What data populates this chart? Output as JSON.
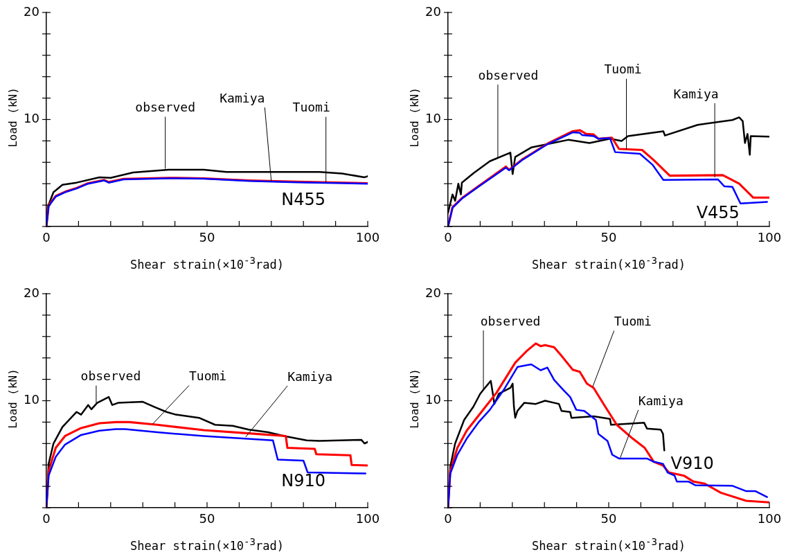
{
  "chart_data": [
    {
      "type": "line",
      "title": "N455",
      "xlabel": "Shear strain(×10$^{-3}$rad)",
      "ylabel": "Load (kN)",
      "xlim": [
        0,
        100
      ],
      "ylim": [
        0,
        20
      ],
      "xticks": [
        0,
        {
          "value": 10,
          "label": null
        },
        {
          "value": 20,
          "label": null
        },
        {
          "value": 30,
          "label": null
        },
        {
          "value": 40,
          "label": null
        },
        50,
        {
          "value": 60,
          "label": null
        },
        {
          "value": 70,
          "label": null
        },
        {
          "value": 80,
          "label": null
        },
        {
          "value": 90,
          "label": null
        },
        100
      ],
      "yticks": [
        {
          "value": 0,
          "label": null
        },
        {
          "value": 2,
          "label": null
        },
        {
          "value": 4,
          "label": null
        },
        {
          "value": 6,
          "label": null
        },
        {
          "value": 8,
          "label": null
        },
        {
          "value": 10,
          "label": "10"
        },
        {
          "value": 12,
          "label": null
        },
        {
          "value": 14,
          "label": null
        },
        {
          "value": 16,
          "label": null
        },
        {
          "value": 18,
          "label": null
        },
        {
          "value": 20,
          "label": "20"
        }
      ],
      "series": [
        {
          "color": "#000000",
          "x": [
            0,
            0.5,
            2.2,
            5,
            9.4,
            16.5,
            20,
            27,
            38,
            49,
            56,
            70.5,
            85,
            92,
            99,
            100
          ],
          "values": [
            0,
            1.9,
            3.2,
            3.9,
            4.1,
            4.6,
            4.55,
            5.05,
            5.3,
            5.3,
            5.1,
            5.1,
            5.1,
            4.95,
            4.6,
            4.7
          ]
        },
        {
          "color": "#ff0000",
          "x": [
            0,
            0.7,
            2.9,
            5.8,
            9.4,
            13,
            18,
            19.4,
            24,
            38,
            49,
            63,
            78,
            100
          ],
          "values": [
            0,
            2.0,
            2.85,
            3.25,
            3.6,
            4.05,
            4.35,
            4.15,
            4.45,
            4.55,
            4.5,
            4.3,
            4.18,
            4.05
          ]
        },
        {
          "color": "#0000ff",
          "x": [
            0,
            0.7,
            2.9,
            5.8,
            9.4,
            13,
            18,
            19.4,
            24,
            38,
            49,
            63,
            78,
            100
          ],
          "values": [
            0,
            1.9,
            2.8,
            3.2,
            3.55,
            4.0,
            4.3,
            4.1,
            4.4,
            4.5,
            4.47,
            4.25,
            4.13,
            4.0
          ]
        }
      ],
      "annotations": [
        {
          "text": "observed",
          "x": 37,
          "y": 5.4
        },
        {
          "text": "Kamiya",
          "x": 70,
          "y": 4.2
        },
        {
          "text": "Tuomi",
          "x": 87,
          "y": 4.1
        }
      ]
    },
    {
      "type": "line",
      "title": "V455",
      "xlabel": "Shear strain(×10$^{-3}$rad)",
      "ylabel": "Load (kN)",
      "xlim": [
        0,
        100
      ],
      "ylim": [
        0,
        20
      ],
      "xticks": [
        0,
        {
          "value": 10,
          "label": null
        },
        {
          "value": 20,
          "label": null
        },
        {
          "value": 30,
          "label": null
        },
        {
          "value": 40,
          "label": null
        },
        50,
        {
          "value": 60,
          "label": null
        },
        {
          "value": 70,
          "label": null
        },
        {
          "value": 80,
          "label": null
        },
        {
          "value": 90,
          "label": null
        },
        100
      ],
      "yticks": [
        {
          "value": 0,
          "label": null
        },
        {
          "value": 2,
          "label": null
        },
        {
          "value": 4,
          "label": null
        },
        {
          "value": 6,
          "label": null
        },
        {
          "value": 8,
          "label": null
        },
        {
          "value": 10,
          "label": "10"
        },
        {
          "value": 12,
          "label": null
        },
        {
          "value": 14,
          "label": null
        },
        {
          "value": 16,
          "label": null
        },
        {
          "value": 18,
          "label": null
        },
        {
          "value": 20,
          "label": "20"
        }
      ],
      "series": [
        {
          "color": "#000000",
          "x": [
            0,
            1.4,
            2.2,
            3.2,
            4,
            4.3,
            8,
            13,
            19.4,
            20.1,
            20.9,
            26,
            31,
            37.4,
            44,
            50.4,
            54,
            56,
            67,
            67.5,
            77.7,
            88.5,
            90.6,
            91.7,
            92.4,
            93.2,
            93.9,
            94.2,
            100
          ],
          "values": [
            1.3,
            3.0,
            2.4,
            4.0,
            3.0,
            4.1,
            5.0,
            6.1,
            6.9,
            4.9,
            6.5,
            7.4,
            7.7,
            8.1,
            7.8,
            8.2,
            8.0,
            8.45,
            8.9,
            8.5,
            9.5,
            9.95,
            10.2,
            9.85,
            7.8,
            8.65,
            6.7,
            8.45,
            8.4
          ]
        },
        {
          "color": "#ff0000",
          "x": [
            0,
            1.4,
            4.3,
            9.4,
            18,
            19,
            23,
            31,
            38.8,
            41,
            43,
            45.3,
            46.8,
            51,
            53.2,
            60.4,
            64,
            69,
            85.5,
            90.6,
            95,
            100
          ],
          "values": [
            0,
            1.8,
            2.65,
            3.75,
            5.6,
            5.3,
            6.25,
            7.75,
            8.9,
            9.0,
            8.65,
            8.6,
            8.2,
            8.3,
            7.25,
            7.15,
            6.2,
            4.75,
            4.8,
            4.0,
            2.7,
            2.7
          ]
        },
        {
          "color": "#0000ff",
          "x": [
            0,
            1.4,
            4.3,
            9.4,
            18,
            19,
            23,
            31,
            38.8,
            41,
            41.7,
            45.3,
            46.8,
            50.4,
            52,
            59.7,
            63.7,
            67,
            84,
            86,
            88.5,
            91,
            99.3
          ],
          "values": [
            0,
            1.75,
            2.6,
            3.7,
            5.5,
            5.25,
            6.2,
            7.7,
            8.8,
            8.75,
            8.55,
            8.45,
            8.2,
            8.25,
            6.95,
            6.8,
            5.75,
            4.35,
            4.4,
            3.75,
            3.7,
            2.15,
            2.3
          ]
        }
      ],
      "annotations": [
        {
          "text": "observed",
          "x": 15.5,
          "y": 6.4
        },
        {
          "text": "Tuomi",
          "x": 55.5,
          "y": 7.2
        },
        {
          "text": "Kamiya",
          "x": 83,
          "y": 4.6
        }
      ]
    },
    {
      "type": "line",
      "title": "N910",
      "xlabel": "Shear strain(×10$^{-3}$rad)",
      "ylabel": "Load (kN)",
      "xlim": [
        0,
        100
      ],
      "ylim": [
        0,
        20
      ],
      "xticks": [
        0,
        {
          "value": 10,
          "label": null
        },
        {
          "value": 20,
          "label": null
        },
        {
          "value": 30,
          "label": null
        },
        {
          "value": 40,
          "label": null
        },
        50,
        {
          "value": 60,
          "label": null
        },
        {
          "value": 70,
          "label": null
        },
        {
          "value": 80,
          "label": null
        },
        {
          "value": 90,
          "label": null
        },
        100
      ],
      "yticks": [
        {
          "value": 0,
          "label": null
        },
        {
          "value": 2,
          "label": null
        },
        {
          "value": 4,
          "label": null
        },
        {
          "value": 6,
          "label": null
        },
        {
          "value": 8,
          "label": null
        },
        {
          "value": 10,
          "label": "10"
        },
        {
          "value": 12,
          "label": null
        },
        {
          "value": 14,
          "label": null
        },
        {
          "value": 16,
          "label": null
        },
        {
          "value": 18,
          "label": null
        },
        {
          "value": 20,
          "label": "20"
        }
      ],
      "series": [
        {
          "color": "#000000",
          "x": [
            0,
            0.7,
            2.2,
            5,
            9.4,
            10.8,
            13,
            14,
            15.8,
            19.4,
            20.5,
            22.3,
            30,
            33.8,
            37.4,
            40.3,
            47.5,
            52.5,
            58,
            63,
            69,
            74,
            81,
            85,
            98,
            99,
            100
          ],
          "values": [
            0,
            4.1,
            6.0,
            7.55,
            8.95,
            8.7,
            9.6,
            9.2,
            9.8,
            10.35,
            9.6,
            9.8,
            9.9,
            9.4,
            8.95,
            8.7,
            8.4,
            7.75,
            7.65,
            7.3,
            7.05,
            6.7,
            6.3,
            6.25,
            6.35,
            6.0,
            6.15
          ]
        },
        {
          "color": "#ff0000",
          "x": [
            0,
            0.7,
            2.9,
            5.8,
            10.8,
            16.5,
            21.6,
            25.9,
            34.5,
            49,
            63,
            74.5,
            75,
            83.5,
            84,
            94.6,
            95,
            100
          ],
          "values": [
            0,
            3.45,
            5.6,
            6.7,
            7.45,
            7.9,
            8.0,
            8.0,
            7.75,
            7.25,
            6.95,
            6.7,
            5.6,
            5.5,
            5.0,
            4.9,
            4.0,
            3.95
          ]
        },
        {
          "color": "#0000ff",
          "x": [
            0,
            0.7,
            2.9,
            5.8,
            10.8,
            16.5,
            21.6,
            24.5,
            34.5,
            49,
            70.5,
            72,
            80,
            81.3,
            99.3
          ],
          "values": [
            0,
            3.0,
            4.75,
            5.9,
            6.8,
            7.2,
            7.35,
            7.35,
            7.05,
            6.7,
            6.3,
            4.5,
            4.4,
            3.3,
            3.2
          ]
        }
      ],
      "annotations": [
        {
          "text": "observed",
          "x": 15.5,
          "y": 9.8
        },
        {
          "text": "Tuomi",
          "x": 33,
          "y": 7.8
        },
        {
          "text": "Kamiya",
          "x": 62,
          "y": 6.6
        }
      ]
    },
    {
      "type": "line",
      "title": "V910",
      "xlabel": "Shear strain(×10$^{-3}$rad)",
      "ylabel": "Load (kN)",
      "xlim": [
        0,
        100
      ],
      "ylim": [
        0,
        20
      ],
      "xticks": [
        0,
        {
          "value": 10,
          "label": null
        },
        {
          "value": 20,
          "label": null
        },
        {
          "value": 30,
          "label": null
        },
        {
          "value": 40,
          "label": null
        },
        50,
        {
          "value": 60,
          "label": null
        },
        {
          "value": 70,
          "label": null
        },
        {
          "value": 80,
          "label": null
        },
        {
          "value": 90,
          "label": null
        },
        100
      ],
      "yticks": [
        {
          "value": 0,
          "label": null
        },
        {
          "value": 2,
          "label": null
        },
        {
          "value": 4,
          "label": null
        },
        {
          "value": 6,
          "label": null
        },
        {
          "value": 8,
          "label": null
        },
        {
          "value": 10,
          "label": "10"
        },
        {
          "value": 12,
          "label": null
        },
        {
          "value": 14,
          "label": null
        },
        {
          "value": 16,
          "label": null
        },
        {
          "value": 18,
          "label": null
        },
        {
          "value": 20,
          "label": "20"
        }
      ],
      "series": [
        {
          "color": "#000000",
          "x": [
            0,
            0.7,
            2.2,
            5,
            7.9,
            10,
            11.2,
            13.3,
            14,
            14.4,
            15.8,
            19.4,
            20.1,
            20.5,
            20.9,
            21.6,
            23.7,
            27.3,
            30.2,
            34.5,
            35.3,
            38,
            38.4,
            45.3,
            50.4,
            50.7,
            56,
            61,
            61.9,
            66.2,
            66.9,
            67.3
          ],
          "values": [
            0,
            3.85,
            6.0,
            8.2,
            9.45,
            10.65,
            11.1,
            11.85,
            10.55,
            9.7,
            10.65,
            11.2,
            11.6,
            9.45,
            8.4,
            9.05,
            9.8,
            9.7,
            10.0,
            9.7,
            9.05,
            8.95,
            8.4,
            8.55,
            8.3,
            7.75,
            7.85,
            7.95,
            7.4,
            7.3,
            6.9,
            5.35
          ]
        },
        {
          "color": "#ff0000",
          "x": [
            0,
            0.7,
            2.9,
            5.8,
            10,
            15.1,
            20.9,
            24.5,
            27.3,
            28.8,
            30.2,
            33,
            35.3,
            38.8,
            41,
            43.2,
            45.3,
            48.9,
            52.5,
            57.5,
            61.2,
            64,
            66.9,
            68.7,
            73.4,
            76.3,
            79.9,
            84.9,
            92.8,
            100
          ],
          "values": [
            0,
            3.45,
            5.6,
            7.2,
            8.8,
            10.75,
            13.55,
            14.65,
            15.35,
            15.1,
            15.2,
            15.0,
            14.2,
            12.9,
            12.7,
            11.6,
            11.2,
            9.45,
            7.75,
            6.45,
            5.6,
            4.3,
            3.95,
            3.3,
            3.0,
            2.45,
            2.25,
            1.4,
            0.65,
            0.5
          ]
        },
        {
          "color": "#0000ff",
          "x": [
            0,
            0.7,
            2.9,
            5.8,
            9.4,
            13,
            17.3,
            21.6,
            25.9,
            28.8,
            30.9,
            33,
            35.9,
            38,
            39.9,
            42.4,
            46,
            46.8,
            49.6,
            51.1,
            53.2,
            61.9,
            64,
            66.9,
            68.3,
            70.5,
            71.2,
            74.8,
            77,
            88.5,
            92.8,
            95.7,
            99.3
          ],
          "values": [
            0,
            3.2,
            4.95,
            6.45,
            7.95,
            9.15,
            11.0,
            13.15,
            13.4,
            12.85,
            13.1,
            11.95,
            11.0,
            10.35,
            9.15,
            9.05,
            8.2,
            6.9,
            6.25,
            4.95,
            4.6,
            4.6,
            4.3,
            4.1,
            3.3,
            3.0,
            2.45,
            2.45,
            2.1,
            2.05,
            1.55,
            1.55,
            1.0
          ]
        }
      ],
      "annotations": [
        {
          "text": "observed",
          "x": 11,
          "y": 11
        },
        {
          "text": "Tuomi",
          "x": 45,
          "y": 11.3
        },
        {
          "text": "Kamiya",
          "x": 53.5,
          "y": 4.6
        }
      ]
    }
  ]
}
